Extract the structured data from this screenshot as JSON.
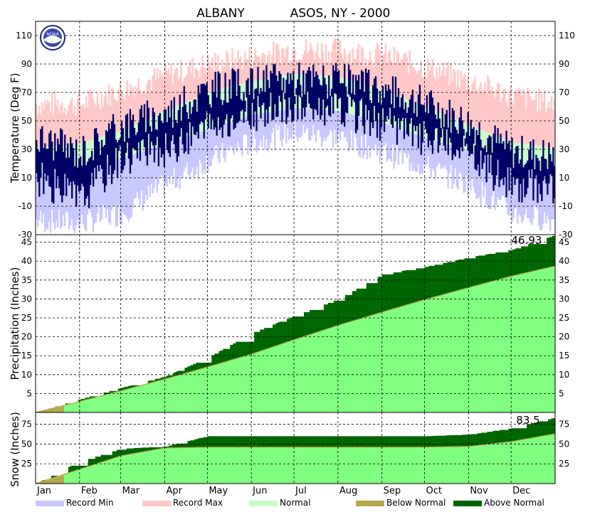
{
  "page": {
    "title_left": "ALBANY",
    "title_right": "ASOS, NY - 2000"
  },
  "logo": {
    "text": "NOAA"
  },
  "colors": {
    "record_min": "#c8c8ff",
    "record_max": "#ffc8c8",
    "normal": "#c8ffc8",
    "observed": "#000066",
    "below_normal": "#b4a84a",
    "above_normal": "#006600",
    "normal_precip": "#80ff80"
  },
  "months": [
    "Jan",
    "Feb",
    "Mar",
    "Apr",
    "May",
    "Jun",
    "Jul",
    "Aug",
    "Sep",
    "Oct",
    "Nov",
    "Dec"
  ],
  "legend": [
    {
      "label": "Record Min",
      "color": "#c8c8ff"
    },
    {
      "label": "Record Max",
      "color": "#ffc8c8"
    },
    {
      "label": "Normal",
      "color": "#c8ffc8"
    },
    {
      "label": "Below Normal",
      "color": "#b4a84a"
    },
    {
      "label": "Above Normal",
      "color": "#006600"
    }
  ],
  "chart_data": [
    {
      "type": "area",
      "panel": "temperature",
      "ylabel": "Temperature (Deg F)",
      "ylim": [
        -30,
        120
      ],
      "yticks": [
        -30,
        -10,
        10,
        30,
        50,
        70,
        90,
        110
      ],
      "grid": true,
      "x": [
        "Jan 1",
        "Feb 1",
        "Mar 1",
        "Apr 1",
        "May 1",
        "Jun 1",
        "Jul 1",
        "Aug 1",
        "Sep 1",
        "Oct 1",
        "Nov 1",
        "Dec 1",
        "Dec 31"
      ],
      "series": [
        {
          "name": "Record Max",
          "values": [
            62,
            62,
            72,
            82,
            90,
            95,
            100,
            100,
            96,
            88,
            78,
            68,
            62
          ]
        },
        {
          "name": "Normal High",
          "values": [
            31,
            34,
            43,
            57,
            70,
            78,
            83,
            81,
            72,
            60,
            47,
            35,
            31
          ]
        },
        {
          "name": "Normal Low",
          "values": [
            13,
            15,
            24,
            34,
            44,
            54,
            59,
            57,
            49,
            38,
            29,
            19,
            13
          ]
        },
        {
          "name": "Record Min",
          "values": [
            -20,
            -22,
            -15,
            5,
            22,
            35,
            42,
            38,
            28,
            18,
            5,
            -15,
            -20
          ]
        },
        {
          "name": "Observed High",
          "values": [
            38,
            28,
            47,
            55,
            72,
            76,
            80,
            78,
            72,
            62,
            48,
            28,
            25
          ]
        },
        {
          "name": "Observed Low",
          "values": [
            10,
            -5,
            25,
            30,
            45,
            55,
            60,
            58,
            48,
            38,
            25,
            5,
            5
          ]
        }
      ]
    },
    {
      "type": "area",
      "panel": "precipitation",
      "ylabel": "Precipitation (Inches)",
      "ylim": [
        0,
        47
      ],
      "yticks": [
        5,
        10,
        15,
        20,
        25,
        30,
        35,
        40,
        45
      ],
      "grid": true,
      "annotation": "46.93",
      "x": [
        "Jan 1",
        "Feb 1",
        "Mar 1",
        "Apr 1",
        "May 1",
        "Jun 1",
        "Jul 1",
        "Aug 1",
        "Sep 1",
        "Oct 1",
        "Nov 1",
        "Dec 1",
        "Dec 31"
      ],
      "series": [
        {
          "name": "Normal",
          "values": [
            0,
            2.9,
            5.7,
            8.8,
            12.0,
            15.4,
            19.2,
            23.0,
            26.5,
            29.8,
            33.0,
            36.0,
            38.7
          ]
        },
        {
          "name": "Observed",
          "values": [
            0,
            3.5,
            6.5,
            9.5,
            14.5,
            21.0,
            25.5,
            30.0,
            36.5,
            38.5,
            41.0,
            43.0,
            46.93
          ]
        }
      ]
    },
    {
      "type": "area",
      "panel": "snow",
      "ylabel": "Snow (Inches)",
      "ylim": [
        0,
        90
      ],
      "yticks": [
        25,
        50,
        75
      ],
      "grid": true,
      "annotation": "83.5",
      "x": [
        "Jan 1",
        "Feb 1",
        "Mar 1",
        "Apr 1",
        "May 1",
        "Jun 1",
        "Jul 1",
        "Aug 1",
        "Sep 1",
        "Oct 1",
        "Nov 1",
        "Dec 1",
        "Dec 31"
      ],
      "series": [
        {
          "name": "Normal",
          "values": [
            0,
            18,
            35,
            45,
            46,
            46,
            46,
            46,
            46,
            46,
            47,
            53,
            63
          ]
        },
        {
          "name": "Observed",
          "values": [
            0,
            28,
            44,
            47,
            60,
            60,
            60,
            60,
            60,
            60,
            62,
            70,
            83.5
          ]
        }
      ]
    }
  ]
}
